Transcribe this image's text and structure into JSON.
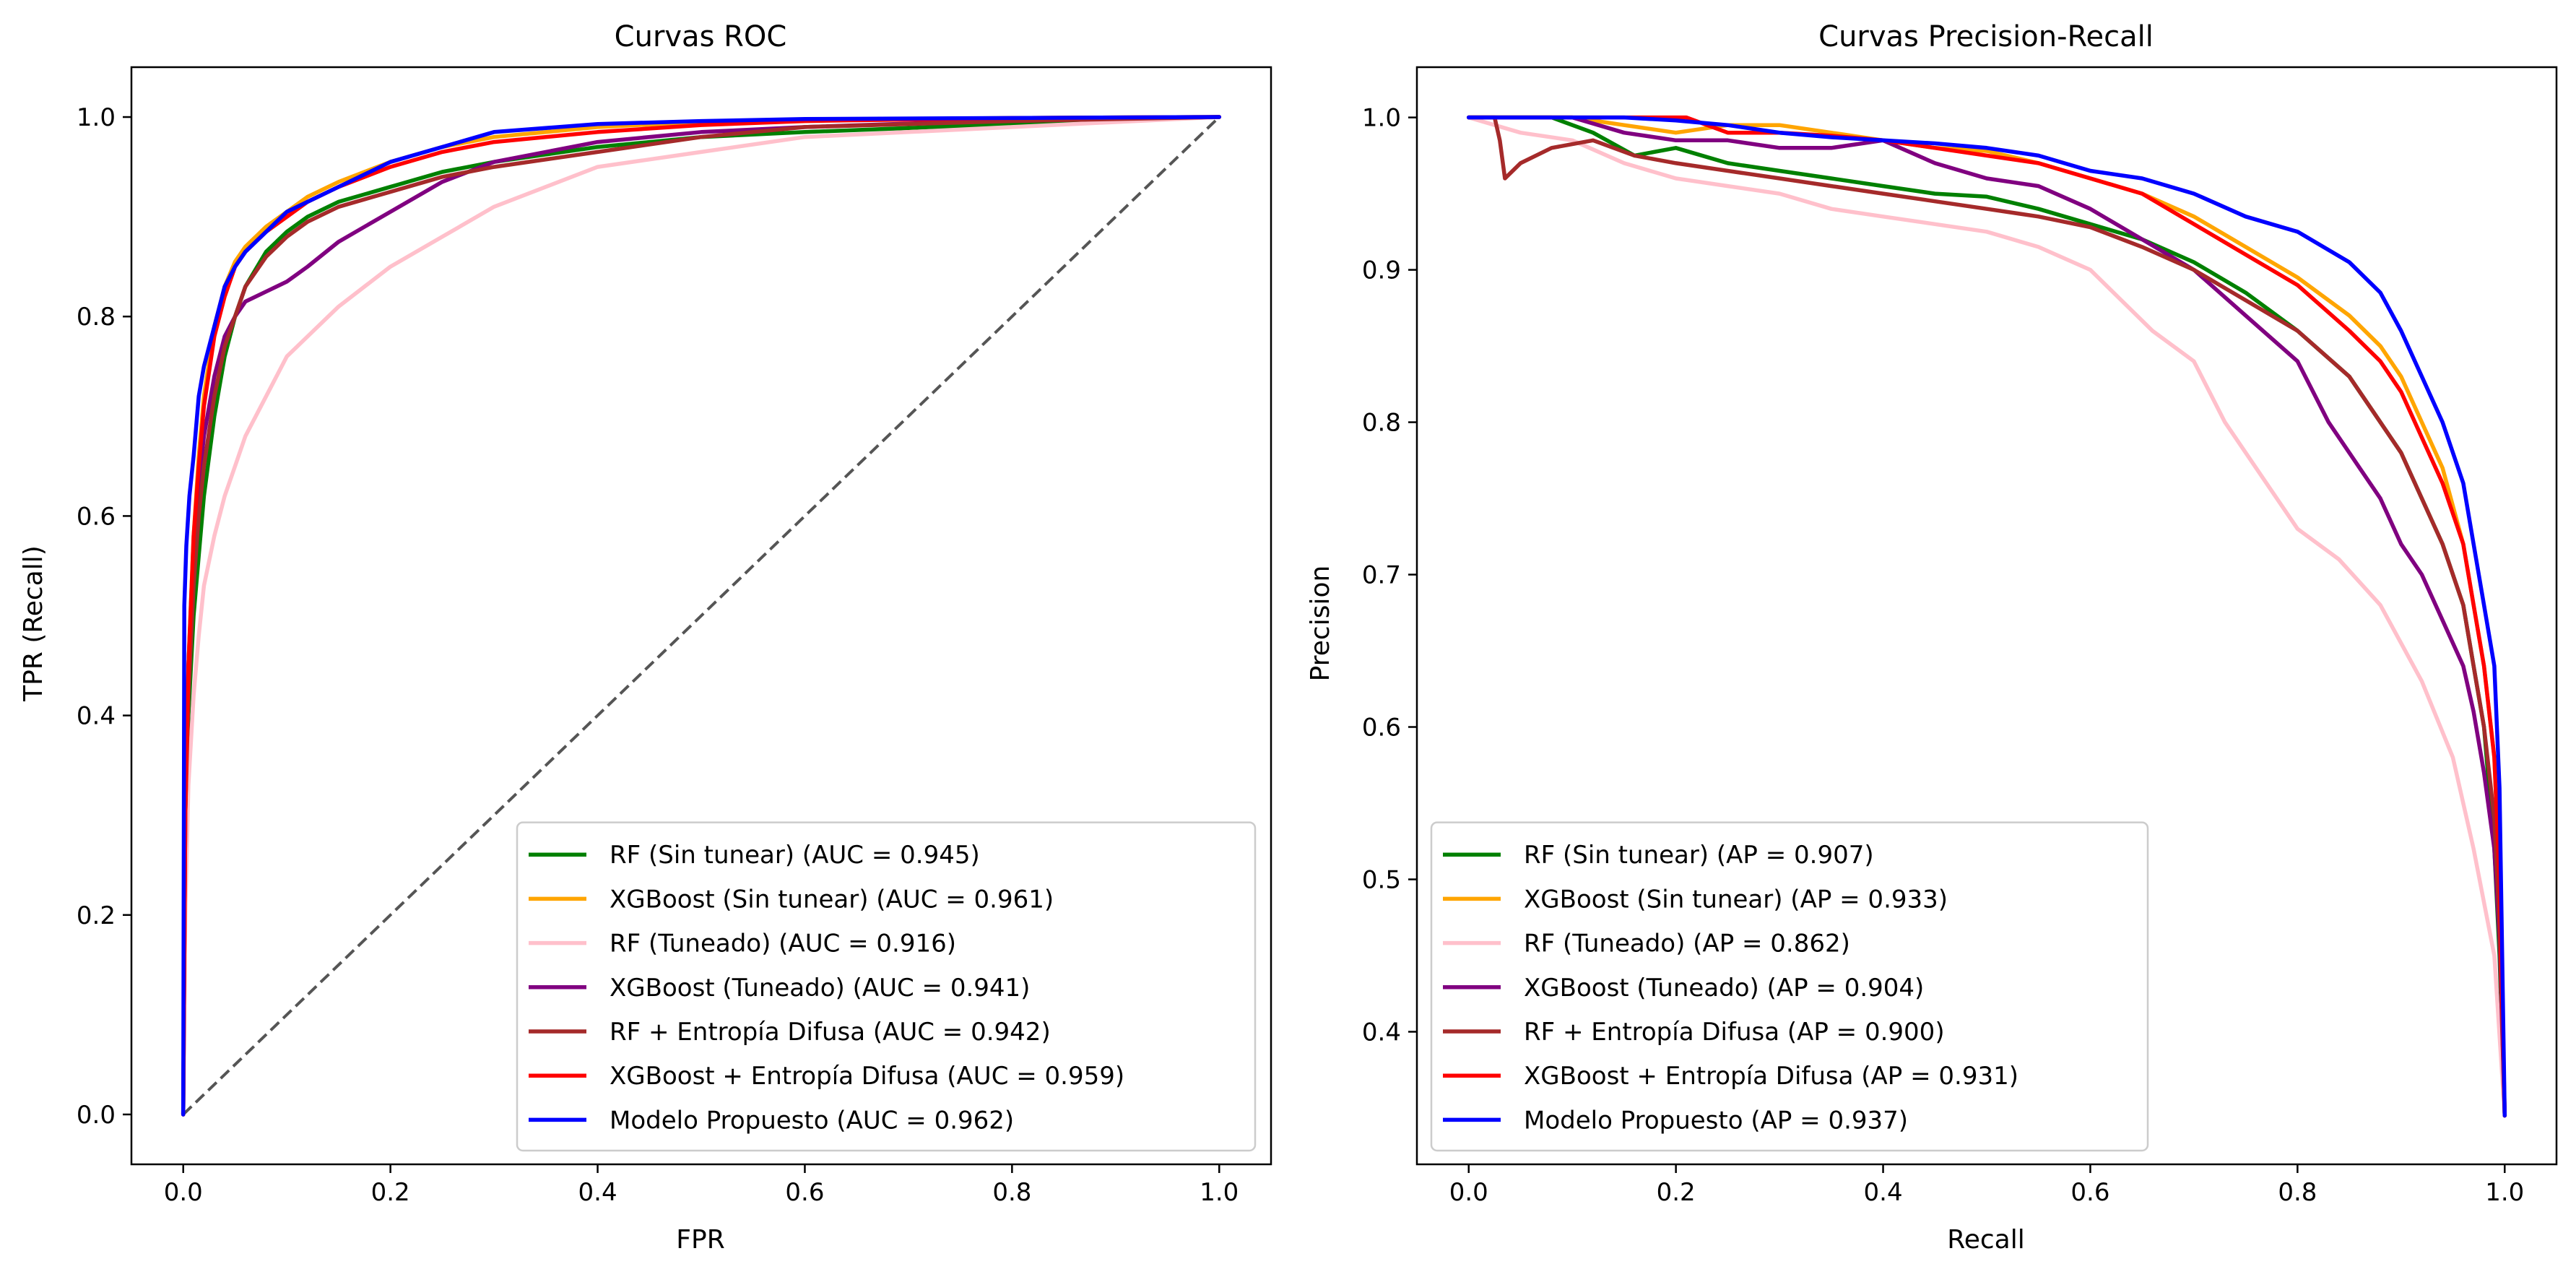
{
  "chart_data": [
    {
      "type": "line",
      "title": "Curvas ROC",
      "xlabel": "FPR",
      "ylabel": "TPR (Recall)",
      "xlim": [
        -0.05,
        1.05
      ],
      "ylim": [
        -0.05,
        1.05
      ],
      "xticks": [
        "0.0",
        "0.2",
        "0.4",
        "0.6",
        "0.8",
        "1.0"
      ],
      "yticks": [
        "0.0",
        "0.2",
        "0.4",
        "0.6",
        "0.8",
        "1.0"
      ],
      "legend": "lower-right",
      "grid": false,
      "reference_line": {
        "x": [
          0,
          1
        ],
        "y": [
          0,
          1
        ],
        "color": "#555555",
        "style": "dashed"
      },
      "series": [
        {
          "name": "RF (Sin tunear) (AUC = 0.945)",
          "color": "#008000",
          "x": [
            0,
            0.002,
            0.005,
            0.01,
            0.015,
            0.02,
            0.03,
            0.04,
            0.05,
            0.06,
            0.08,
            0.1,
            0.12,
            0.15,
            0.2,
            0.25,
            0.3,
            0.4,
            0.5,
            0.6,
            0.8,
            1.0
          ],
          "y": [
            0,
            0.25,
            0.4,
            0.5,
            0.56,
            0.62,
            0.7,
            0.76,
            0.8,
            0.83,
            0.865,
            0.885,
            0.9,
            0.915,
            0.93,
            0.945,
            0.955,
            0.97,
            0.98,
            0.985,
            0.993,
            1.0
          ]
        },
        {
          "name": "XGBoost (Sin tunear) (AUC = 0.961)",
          "color": "#FFA500",
          "x": [
            0,
            0.002,
            0.005,
            0.01,
            0.015,
            0.02,
            0.03,
            0.04,
            0.05,
            0.06,
            0.08,
            0.1,
            0.12,
            0.15,
            0.2,
            0.25,
            0.3,
            0.4,
            0.5,
            0.6,
            0.8,
            1.0
          ],
          "y": [
            0,
            0.3,
            0.45,
            0.58,
            0.66,
            0.72,
            0.79,
            0.83,
            0.855,
            0.87,
            0.89,
            0.905,
            0.92,
            0.935,
            0.955,
            0.97,
            0.98,
            0.99,
            0.995,
            0.997,
            0.999,
            1.0
          ]
        },
        {
          "name": "RF (Tuneado) (AUC = 0.916)",
          "color": "#FFC0CB",
          "x": [
            0,
            0.002,
            0.005,
            0.01,
            0.015,
            0.02,
            0.03,
            0.04,
            0.05,
            0.06,
            0.08,
            0.1,
            0.12,
            0.15,
            0.2,
            0.25,
            0.3,
            0.35,
            0.4,
            0.5,
            0.6,
            0.8,
            1.0
          ],
          "y": [
            0,
            0.2,
            0.33,
            0.42,
            0.48,
            0.53,
            0.58,
            0.62,
            0.65,
            0.68,
            0.72,
            0.76,
            0.78,
            0.81,
            0.85,
            0.88,
            0.91,
            0.93,
            0.95,
            0.965,
            0.98,
            0.99,
            1.0
          ]
        },
        {
          "name": "XGBoost (Tuneado) (AUC = 0.941)",
          "color": "#800080",
          "x": [
            0,
            0.002,
            0.005,
            0.01,
            0.015,
            0.02,
            0.03,
            0.04,
            0.05,
            0.06,
            0.08,
            0.1,
            0.12,
            0.15,
            0.2,
            0.25,
            0.3,
            0.4,
            0.5,
            0.6,
            0.8,
            1.0
          ],
          "y": [
            0,
            0.3,
            0.45,
            0.57,
            0.63,
            0.68,
            0.74,
            0.78,
            0.8,
            0.815,
            0.825,
            0.835,
            0.85,
            0.875,
            0.905,
            0.935,
            0.955,
            0.975,
            0.985,
            0.99,
            0.997,
            1.0
          ]
        },
        {
          "name": "RF + Entropía Difusa (AUC = 0.942)",
          "color": "#A52A2A",
          "x": [
            0,
            0.002,
            0.005,
            0.01,
            0.015,
            0.02,
            0.03,
            0.04,
            0.05,
            0.06,
            0.08,
            0.1,
            0.12,
            0.15,
            0.2,
            0.25,
            0.3,
            0.4,
            0.5,
            0.6,
            0.8,
            1.0
          ],
          "y": [
            0,
            0.3,
            0.42,
            0.53,
            0.6,
            0.65,
            0.72,
            0.77,
            0.8,
            0.83,
            0.86,
            0.88,
            0.895,
            0.91,
            0.925,
            0.94,
            0.95,
            0.965,
            0.98,
            0.99,
            0.996,
            1.0
          ]
        },
        {
          "name": "XGBoost + Entropía Difusa (AUC = 0.959)",
          "color": "#FF0000",
          "x": [
            0,
            0.002,
            0.005,
            0.01,
            0.015,
            0.02,
            0.03,
            0.04,
            0.05,
            0.06,
            0.08,
            0.1,
            0.12,
            0.15,
            0.2,
            0.25,
            0.3,
            0.4,
            0.5,
            0.6,
            0.8,
            1.0
          ],
          "y": [
            0,
            0.3,
            0.45,
            0.58,
            0.65,
            0.71,
            0.78,
            0.82,
            0.85,
            0.865,
            0.885,
            0.9,
            0.915,
            0.93,
            0.95,
            0.965,
            0.975,
            0.985,
            0.992,
            0.996,
            0.999,
            1.0
          ]
        },
        {
          "name": "Modelo Propuesto (AUC = 0.962)",
          "color": "#0000FF",
          "x": [
            0,
            0.001,
            0.003,
            0.006,
            0.01,
            0.015,
            0.02,
            0.03,
            0.04,
            0.05,
            0.06,
            0.08,
            0.1,
            0.12,
            0.15,
            0.2,
            0.25,
            0.3,
            0.4,
            0.5,
            0.6,
            0.8,
            1.0
          ],
          "y": [
            0,
            0.51,
            0.57,
            0.62,
            0.66,
            0.72,
            0.75,
            0.79,
            0.83,
            0.85,
            0.865,
            0.885,
            0.905,
            0.915,
            0.93,
            0.955,
            0.97,
            0.985,
            0.993,
            0.996,
            0.998,
            0.999,
            1.0
          ]
        }
      ]
    },
    {
      "type": "line",
      "title": "Curvas Precision-Recall",
      "xlabel": "Recall",
      "ylabel": "Precision",
      "xlim": [
        -0.05,
        1.05
      ],
      "ylim": [
        0.313,
        1.033
      ],
      "xticks": [
        "0.0",
        "0.2",
        "0.4",
        "0.6",
        "0.8",
        "1.0"
      ],
      "yticks": [
        "0.4",
        "0.5",
        "0.6",
        "0.7",
        "0.8",
        "0.9",
        "1.0"
      ],
      "legend": "lower-left",
      "grid": false,
      "series": [
        {
          "name": "RF (Sin tunear) (AP = 0.907)",
          "color": "#008000",
          "x": [
            0,
            0.08,
            0.12,
            0.16,
            0.2,
            0.25,
            0.3,
            0.35,
            0.4,
            0.45,
            0.5,
            0.55,
            0.6,
            0.65,
            0.7,
            0.75,
            0.8,
            0.85,
            0.88,
            0.9,
            0.92,
            0.94,
            0.96,
            0.97,
            0.98,
            0.99,
            0.995,
            1.0
          ],
          "y": [
            1.0,
            1.0,
            0.99,
            0.975,
            0.98,
            0.97,
            0.965,
            0.96,
            0.955,
            0.95,
            0.948,
            0.94,
            0.93,
            0.92,
            0.905,
            0.885,
            0.86,
            0.83,
            0.8,
            0.78,
            0.75,
            0.72,
            0.68,
            0.64,
            0.6,
            0.52,
            0.45,
            0.345
          ]
        },
        {
          "name": "XGBoost (Sin tunear) (AP = 0.933)",
          "color": "#FFA500",
          "x": [
            0,
            0.1,
            0.15,
            0.2,
            0.25,
            0.3,
            0.35,
            0.4,
            0.45,
            0.5,
            0.55,
            0.6,
            0.65,
            0.7,
            0.75,
            0.8,
            0.85,
            0.88,
            0.9,
            0.92,
            0.94,
            0.96,
            0.97,
            0.98,
            0.99,
            0.995,
            1.0
          ],
          "y": [
            1.0,
            1.0,
            0.995,
            0.99,
            0.995,
            0.995,
            0.99,
            0.985,
            0.98,
            0.978,
            0.97,
            0.96,
            0.95,
            0.935,
            0.915,
            0.895,
            0.87,
            0.85,
            0.83,
            0.8,
            0.77,
            0.72,
            0.68,
            0.64,
            0.58,
            0.5,
            0.345
          ]
        },
        {
          "name": "RF (Tuneado) (AP = 0.862)",
          "color": "#FFC0CB",
          "x": [
            0,
            0.05,
            0.1,
            0.15,
            0.2,
            0.25,
            0.3,
            0.35,
            0.4,
            0.45,
            0.5,
            0.55,
            0.6,
            0.63,
            0.66,
            0.7,
            0.73,
            0.76,
            0.8,
            0.84,
            0.88,
            0.92,
            0.95,
            0.97,
            0.99,
            1.0
          ],
          "y": [
            1.0,
            0.99,
            0.985,
            0.97,
            0.96,
            0.955,
            0.95,
            0.94,
            0.935,
            0.93,
            0.925,
            0.915,
            0.9,
            0.88,
            0.86,
            0.84,
            0.8,
            0.77,
            0.73,
            0.71,
            0.68,
            0.63,
            0.58,
            0.52,
            0.45,
            0.345
          ]
        },
        {
          "name": "XGBoost (Tuneado) (AP = 0.904)",
          "color": "#800080",
          "x": [
            0,
            0.1,
            0.15,
            0.2,
            0.25,
            0.3,
            0.35,
            0.4,
            0.45,
            0.5,
            0.55,
            0.6,
            0.65,
            0.7,
            0.75,
            0.8,
            0.83,
            0.86,
            0.88,
            0.9,
            0.92,
            0.94,
            0.96,
            0.97,
            0.98,
            0.99,
            0.995,
            1.0
          ],
          "y": [
            1.0,
            1.0,
            0.99,
            0.985,
            0.985,
            0.98,
            0.98,
            0.985,
            0.97,
            0.96,
            0.955,
            0.94,
            0.92,
            0.9,
            0.87,
            0.84,
            0.8,
            0.77,
            0.75,
            0.72,
            0.7,
            0.67,
            0.64,
            0.61,
            0.57,
            0.52,
            0.46,
            0.345
          ]
        },
        {
          "name": "RF + Entropía Difusa (AP = 0.900)",
          "color": "#A52A2A",
          "x": [
            0,
            0.025,
            0.03,
            0.035,
            0.05,
            0.08,
            0.12,
            0.16,
            0.2,
            0.25,
            0.3,
            0.35,
            0.4,
            0.45,
            0.5,
            0.55,
            0.6,
            0.65,
            0.7,
            0.75,
            0.8,
            0.85,
            0.88,
            0.9,
            0.92,
            0.94,
            0.96,
            0.97,
            0.98,
            0.99,
            0.995,
            1.0
          ],
          "y": [
            1.0,
            1.0,
            0.985,
            0.96,
            0.97,
            0.98,
            0.985,
            0.975,
            0.97,
            0.965,
            0.96,
            0.955,
            0.95,
            0.945,
            0.94,
            0.935,
            0.928,
            0.915,
            0.9,
            0.88,
            0.86,
            0.83,
            0.8,
            0.78,
            0.75,
            0.72,
            0.68,
            0.64,
            0.6,
            0.54,
            0.47,
            0.345
          ]
        },
        {
          "name": "XGBoost + Entropía Difusa (AP = 0.931)",
          "color": "#FF0000",
          "x": [
            0,
            0.12,
            0.18,
            0.21,
            0.25,
            0.3,
            0.35,
            0.4,
            0.45,
            0.5,
            0.55,
            0.6,
            0.65,
            0.7,
            0.75,
            0.8,
            0.85,
            0.88,
            0.9,
            0.92,
            0.94,
            0.96,
            0.97,
            0.98,
            0.99,
            0.995,
            1.0
          ],
          "y": [
            1.0,
            1.0,
            1.0,
            1.0,
            0.99,
            0.99,
            0.988,
            0.985,
            0.98,
            0.975,
            0.97,
            0.96,
            0.95,
            0.93,
            0.91,
            0.89,
            0.86,
            0.84,
            0.82,
            0.79,
            0.76,
            0.72,
            0.68,
            0.64,
            0.58,
            0.5,
            0.345
          ]
        },
        {
          "name": "Modelo Propuesto (AP = 0.937)",
          "color": "#0000FF",
          "x": [
            0,
            0.15,
            0.2,
            0.25,
            0.3,
            0.35,
            0.4,
            0.45,
            0.5,
            0.55,
            0.6,
            0.65,
            0.7,
            0.75,
            0.8,
            0.85,
            0.88,
            0.9,
            0.92,
            0.94,
            0.96,
            0.97,
            0.98,
            0.99,
            0.995,
            1.0
          ],
          "y": [
            1.0,
            1.0,
            0.998,
            0.995,
            0.99,
            0.987,
            0.985,
            0.983,
            0.98,
            0.975,
            0.965,
            0.96,
            0.95,
            0.935,
            0.925,
            0.905,
            0.885,
            0.86,
            0.83,
            0.8,
            0.76,
            0.72,
            0.68,
            0.64,
            0.56,
            0.345
          ]
        }
      ]
    }
  ]
}
